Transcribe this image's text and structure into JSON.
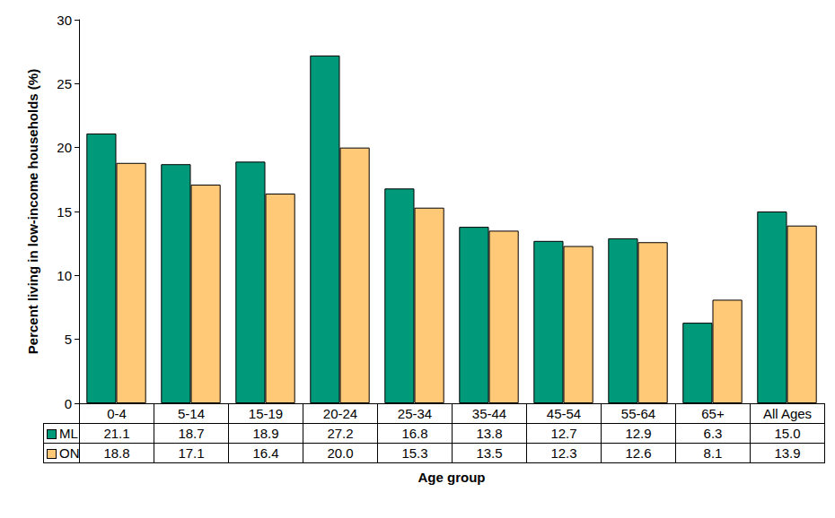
{
  "chart_data": {
    "type": "bar",
    "x_label": "Age group",
    "y_label": "Percent living in low-income households (%)",
    "categories": [
      "0-4",
      "5-14",
      "15-19",
      "20-24",
      "25-34",
      "35-44",
      "45-54",
      "55-64",
      "65+",
      "All Ages"
    ],
    "series": [
      {
        "name": "ML",
        "color": "#009a7a",
        "values": [
          21.1,
          18.7,
          18.9,
          27.2,
          16.8,
          13.8,
          12.7,
          12.9,
          6.3,
          15.0
        ],
        "value_labels": [
          "21.1",
          "18.7",
          "18.9",
          "27.2",
          "16.8",
          "13.8",
          "12.7",
          "12.9",
          "6.3",
          "15.0"
        ]
      },
      {
        "name": "ON",
        "color": "#ffc977",
        "values": [
          18.8,
          17.1,
          16.4,
          20.0,
          15.3,
          13.5,
          12.3,
          12.6,
          8.1,
          13.9
        ],
        "value_labels": [
          "18.8",
          "17.1",
          "16.4",
          "20.0",
          "15.3",
          "13.5",
          "12.3",
          "12.6",
          "8.1",
          "13.9"
        ]
      }
    ],
    "ylim": [
      0,
      30
    ],
    "yticks": [
      0,
      5,
      10,
      15,
      20,
      25,
      30
    ],
    "grid": false
  }
}
